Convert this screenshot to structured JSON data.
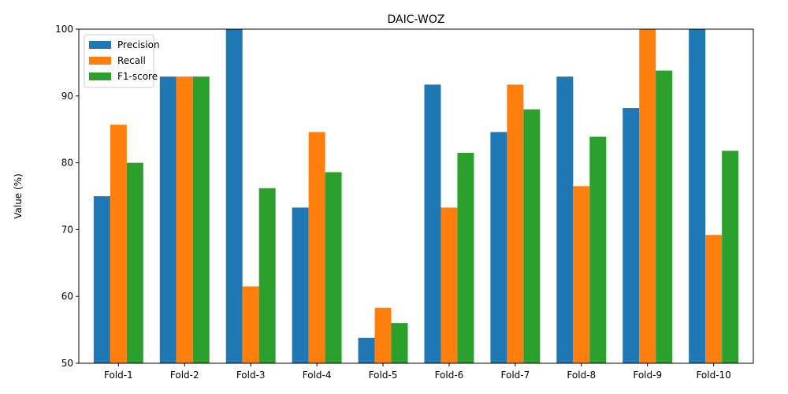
{
  "chart_data": {
    "type": "bar",
    "title": "DAIC-WOZ",
    "xlabel": "",
    "ylabel": "Value (%)",
    "ylim": [
      50,
      100
    ],
    "yticks": [
      50,
      60,
      70,
      80,
      90,
      100
    ],
    "categories": [
      "Fold-1",
      "Fold-2",
      "Fold-3",
      "Fold-4",
      "Fold-5",
      "Fold-6",
      "Fold-7",
      "Fold-8",
      "Fold-9",
      "Fold-10"
    ],
    "series": [
      {
        "name": "Precision",
        "color": "#1f77b4",
        "values": [
          75.0,
          92.9,
          100.0,
          73.3,
          53.8,
          91.7,
          84.6,
          92.9,
          88.2,
          100.0
        ]
      },
      {
        "name": "Recall",
        "color": "#ff7f0e",
        "values": [
          85.7,
          92.9,
          61.5,
          84.6,
          58.3,
          73.3,
          91.7,
          76.5,
          100.0,
          69.2
        ]
      },
      {
        "name": "F1-score",
        "color": "#2ca02c",
        "values": [
          80.0,
          92.9,
          76.2,
          78.6,
          56.0,
          81.5,
          88.0,
          83.9,
          93.8,
          81.8
        ]
      }
    ],
    "grid": false,
    "legend": "top-left"
  }
}
